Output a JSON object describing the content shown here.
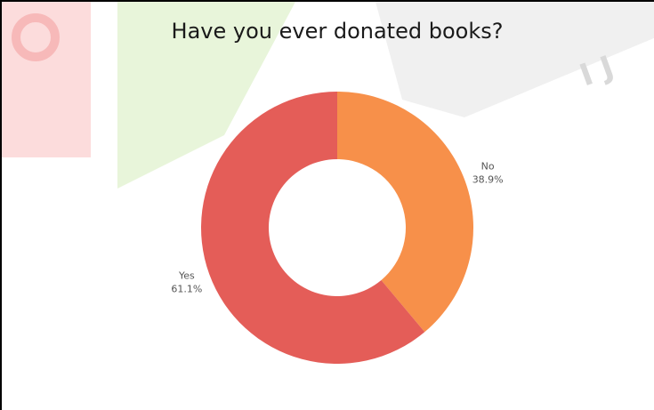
{
  "chart_data": {
    "type": "pie",
    "title": "Have you ever donated books?",
    "donut": true,
    "categories": [
      "No",
      "Yes"
    ],
    "values": [
      38.9,
      61.1
    ],
    "value_labels": [
      "38.9%",
      "61.1%"
    ],
    "colors": [
      "#f7904a",
      "#e45d58"
    ],
    "legend": "none"
  },
  "watermark": {
    "colors": [
      "#fcd9d9",
      "#e5f3d7",
      "#e6e6e6"
    ]
  }
}
